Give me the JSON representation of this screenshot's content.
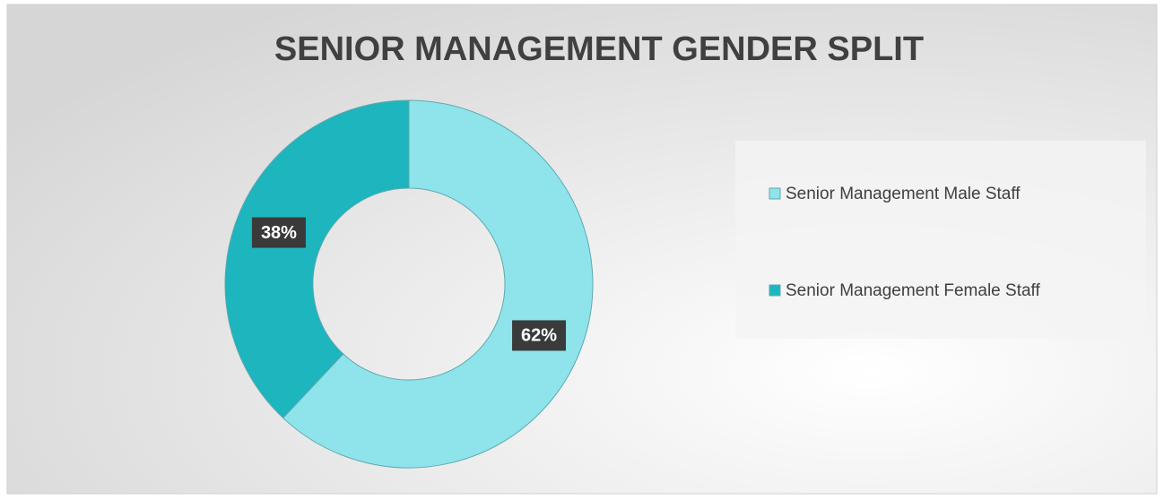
{
  "chart_data": {
    "type": "pie",
    "donut": true,
    "title": "SENIOR MANAGEMENT GENDER SPLIT",
    "categories": [
      "Senior Management Male Staff",
      "Senior Management Female Staff"
    ],
    "values": [
      62,
      38
    ],
    "value_labels": [
      "62%",
      "38%"
    ],
    "colors": [
      "#8fe3ea",
      "#1db5be"
    ],
    "legend": "right"
  }
}
